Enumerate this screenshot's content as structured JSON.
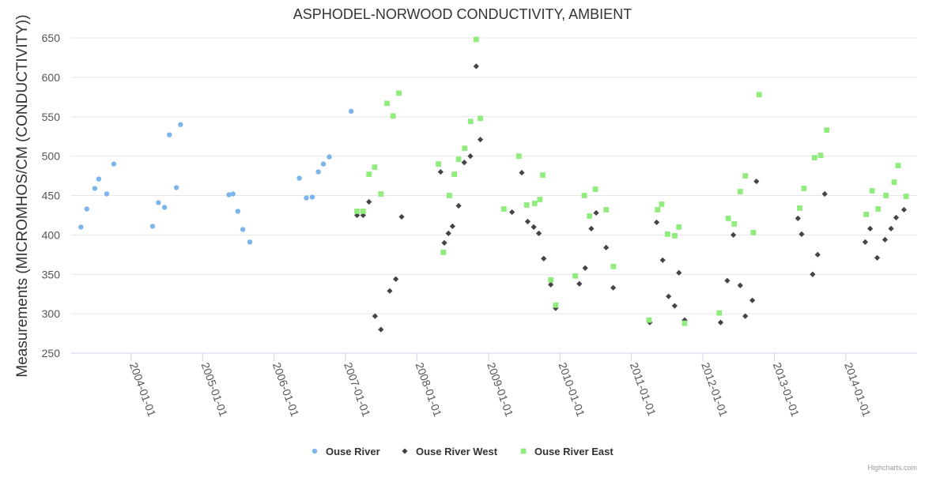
{
  "chart_data": {
    "type": "scatter",
    "title": "ASPHODEL-NORWOOD CONDUCTIVITY, AMBIENT",
    "xlabel": "",
    "ylabel": "Measurements (MICROMHOS/CM (CONDUCTIVITY))",
    "x_axis_type": "date",
    "xlim": [
      "2003-03-01",
      "2014-12-31"
    ],
    "ylim": [
      250,
      650
    ],
    "y_ticks": [
      250,
      300,
      350,
      400,
      450,
      500,
      550,
      600,
      650
    ],
    "x_ticks": [
      "2004-01-01",
      "2005-01-01",
      "2006-01-01",
      "2007-01-01",
      "2008-01-01",
      "2009-01-01",
      "2010-01-01",
      "2011-01-01",
      "2012-01-01",
      "2013-01-01",
      "2014-01-01"
    ],
    "grid": true,
    "legend_position": "bottom-center",
    "series": [
      {
        "name": "Ouse River",
        "color": "#7cb5ec",
        "marker": "circle",
        "points": [
          [
            "2003-04-20",
            410
          ],
          [
            "2003-05-20",
            433
          ],
          [
            "2003-06-30",
            459
          ],
          [
            "2003-07-20",
            471
          ],
          [
            "2003-08-30",
            452
          ],
          [
            "2003-10-05",
            490
          ],
          [
            "2004-04-20",
            411
          ],
          [
            "2004-05-20",
            441
          ],
          [
            "2004-06-20",
            435
          ],
          [
            "2004-07-15",
            527
          ],
          [
            "2004-08-20",
            460
          ],
          [
            "2004-09-10",
            540
          ],
          [
            "2005-05-15",
            451
          ],
          [
            "2005-06-05",
            452
          ],
          [
            "2005-06-30",
            430
          ],
          [
            "2005-07-25",
            407
          ],
          [
            "2005-08-30",
            391
          ],
          [
            "2006-05-10",
            472
          ],
          [
            "2006-06-15",
            447
          ],
          [
            "2006-07-15",
            448
          ],
          [
            "2006-08-15",
            480
          ],
          [
            "2006-09-10",
            490
          ],
          [
            "2006-10-10",
            499
          ],
          [
            "2007-01-30",
            557
          ]
        ]
      },
      {
        "name": "Ouse River West",
        "color": "#434348",
        "marker": "diamond",
        "points": [
          [
            "2007-03-01",
            425
          ],
          [
            "2007-04-01",
            425
          ],
          [
            "2007-05-01",
            442
          ],
          [
            "2007-06-01",
            297
          ],
          [
            "2007-07-01",
            280
          ],
          [
            "2007-08-15",
            329
          ],
          [
            "2007-09-15",
            344
          ],
          [
            "2007-10-15",
            423
          ],
          [
            "2008-05-01",
            480
          ],
          [
            "2008-05-20",
            390
          ],
          [
            "2008-06-10",
            402
          ],
          [
            "2008-07-01",
            411
          ],
          [
            "2008-08-01",
            437
          ],
          [
            "2008-08-30",
            492
          ],
          [
            "2008-09-30",
            500
          ],
          [
            "2008-10-30",
            614
          ],
          [
            "2008-11-20",
            521
          ],
          [
            "2009-05-01",
            429
          ],
          [
            "2009-06-20",
            479
          ],
          [
            "2009-07-20",
            417
          ],
          [
            "2009-08-20",
            410
          ],
          [
            "2009-09-15",
            402
          ],
          [
            "2009-10-10",
            370
          ],
          [
            "2009-11-15",
            337
          ],
          [
            "2009-12-10",
            307
          ],
          [
            "2010-04-10",
            338
          ],
          [
            "2010-05-10",
            358
          ],
          [
            "2010-06-10",
            408
          ],
          [
            "2010-07-05",
            428
          ],
          [
            "2010-08-25",
            384
          ],
          [
            "2010-09-30",
            333
          ],
          [
            "2011-04-05",
            289
          ],
          [
            "2011-05-10",
            416
          ],
          [
            "2011-06-10",
            368
          ],
          [
            "2011-07-10",
            322
          ],
          [
            "2011-08-10",
            310
          ],
          [
            "2011-09-01",
            352
          ],
          [
            "2011-09-30",
            292
          ],
          [
            "2012-04-01",
            289
          ],
          [
            "2012-05-05",
            342
          ],
          [
            "2012-06-05",
            400
          ],
          [
            "2012-07-10",
            336
          ],
          [
            "2012-08-05",
            297
          ],
          [
            "2012-09-10",
            317
          ],
          [
            "2012-10-01",
            468
          ],
          [
            "2013-05-01",
            421
          ],
          [
            "2013-05-20",
            401
          ],
          [
            "2013-07-15",
            350
          ],
          [
            "2013-08-10",
            375
          ],
          [
            "2013-09-15",
            452
          ],
          [
            "2014-04-10",
            391
          ],
          [
            "2014-05-05",
            408
          ],
          [
            "2014-06-10",
            371
          ],
          [
            "2014-07-20",
            394
          ],
          [
            "2014-08-20",
            408
          ],
          [
            "2014-09-15",
            422
          ],
          [
            "2014-10-25",
            432
          ]
        ]
      },
      {
        "name": "Ouse River East",
        "color": "#90ed7d",
        "marker": "square",
        "points": [
          [
            "2007-03-01",
            430
          ],
          [
            "2007-04-01",
            430
          ],
          [
            "2007-05-01",
            477
          ],
          [
            "2007-05-30",
            486
          ],
          [
            "2007-07-01",
            452
          ],
          [
            "2007-08-01",
            567
          ],
          [
            "2007-09-01",
            551
          ],
          [
            "2007-10-01",
            580
          ],
          [
            "2008-04-20",
            490
          ],
          [
            "2008-05-15",
            378
          ],
          [
            "2008-06-15",
            450
          ],
          [
            "2008-07-10",
            477
          ],
          [
            "2008-08-01",
            496
          ],
          [
            "2008-09-01",
            510
          ],
          [
            "2008-10-01",
            544
          ],
          [
            "2008-10-30",
            648
          ],
          [
            "2008-11-20",
            548
          ],
          [
            "2009-03-20",
            433
          ],
          [
            "2009-06-05",
            500
          ],
          [
            "2009-07-15",
            438
          ],
          [
            "2009-08-25",
            440
          ],
          [
            "2009-09-20",
            445
          ],
          [
            "2009-10-05",
            476
          ],
          [
            "2009-11-15",
            343
          ],
          [
            "2009-12-10",
            311
          ],
          [
            "2010-03-20",
            348
          ],
          [
            "2010-05-05",
            450
          ],
          [
            "2010-06-01",
            424
          ],
          [
            "2010-07-01",
            458
          ],
          [
            "2010-08-25",
            432
          ],
          [
            "2010-10-01",
            360
          ],
          [
            "2011-04-01",
            292
          ],
          [
            "2011-05-15",
            432
          ],
          [
            "2011-06-05",
            439
          ],
          [
            "2011-07-05",
            401
          ],
          [
            "2011-08-10",
            399
          ],
          [
            "2011-09-01",
            410
          ],
          [
            "2011-09-30",
            288
          ],
          [
            "2012-03-25",
            301
          ],
          [
            "2012-05-10",
            421
          ],
          [
            "2012-06-10",
            414
          ],
          [
            "2012-07-10",
            455
          ],
          [
            "2012-08-05",
            475
          ],
          [
            "2012-09-15",
            403
          ],
          [
            "2012-10-15",
            578
          ],
          [
            "2013-05-10",
            434
          ],
          [
            "2013-06-01",
            459
          ],
          [
            "2013-07-25",
            498
          ],
          [
            "2013-08-25",
            501
          ],
          [
            "2013-09-25",
            533
          ],
          [
            "2014-04-15",
            426
          ],
          [
            "2014-05-15",
            456
          ],
          [
            "2014-06-15",
            433
          ],
          [
            "2014-07-25",
            450
          ],
          [
            "2014-09-05",
            467
          ],
          [
            "2014-09-25",
            488
          ],
          [
            "2014-11-05",
            449
          ]
        ]
      }
    ]
  },
  "credits": "Highcharts.com"
}
